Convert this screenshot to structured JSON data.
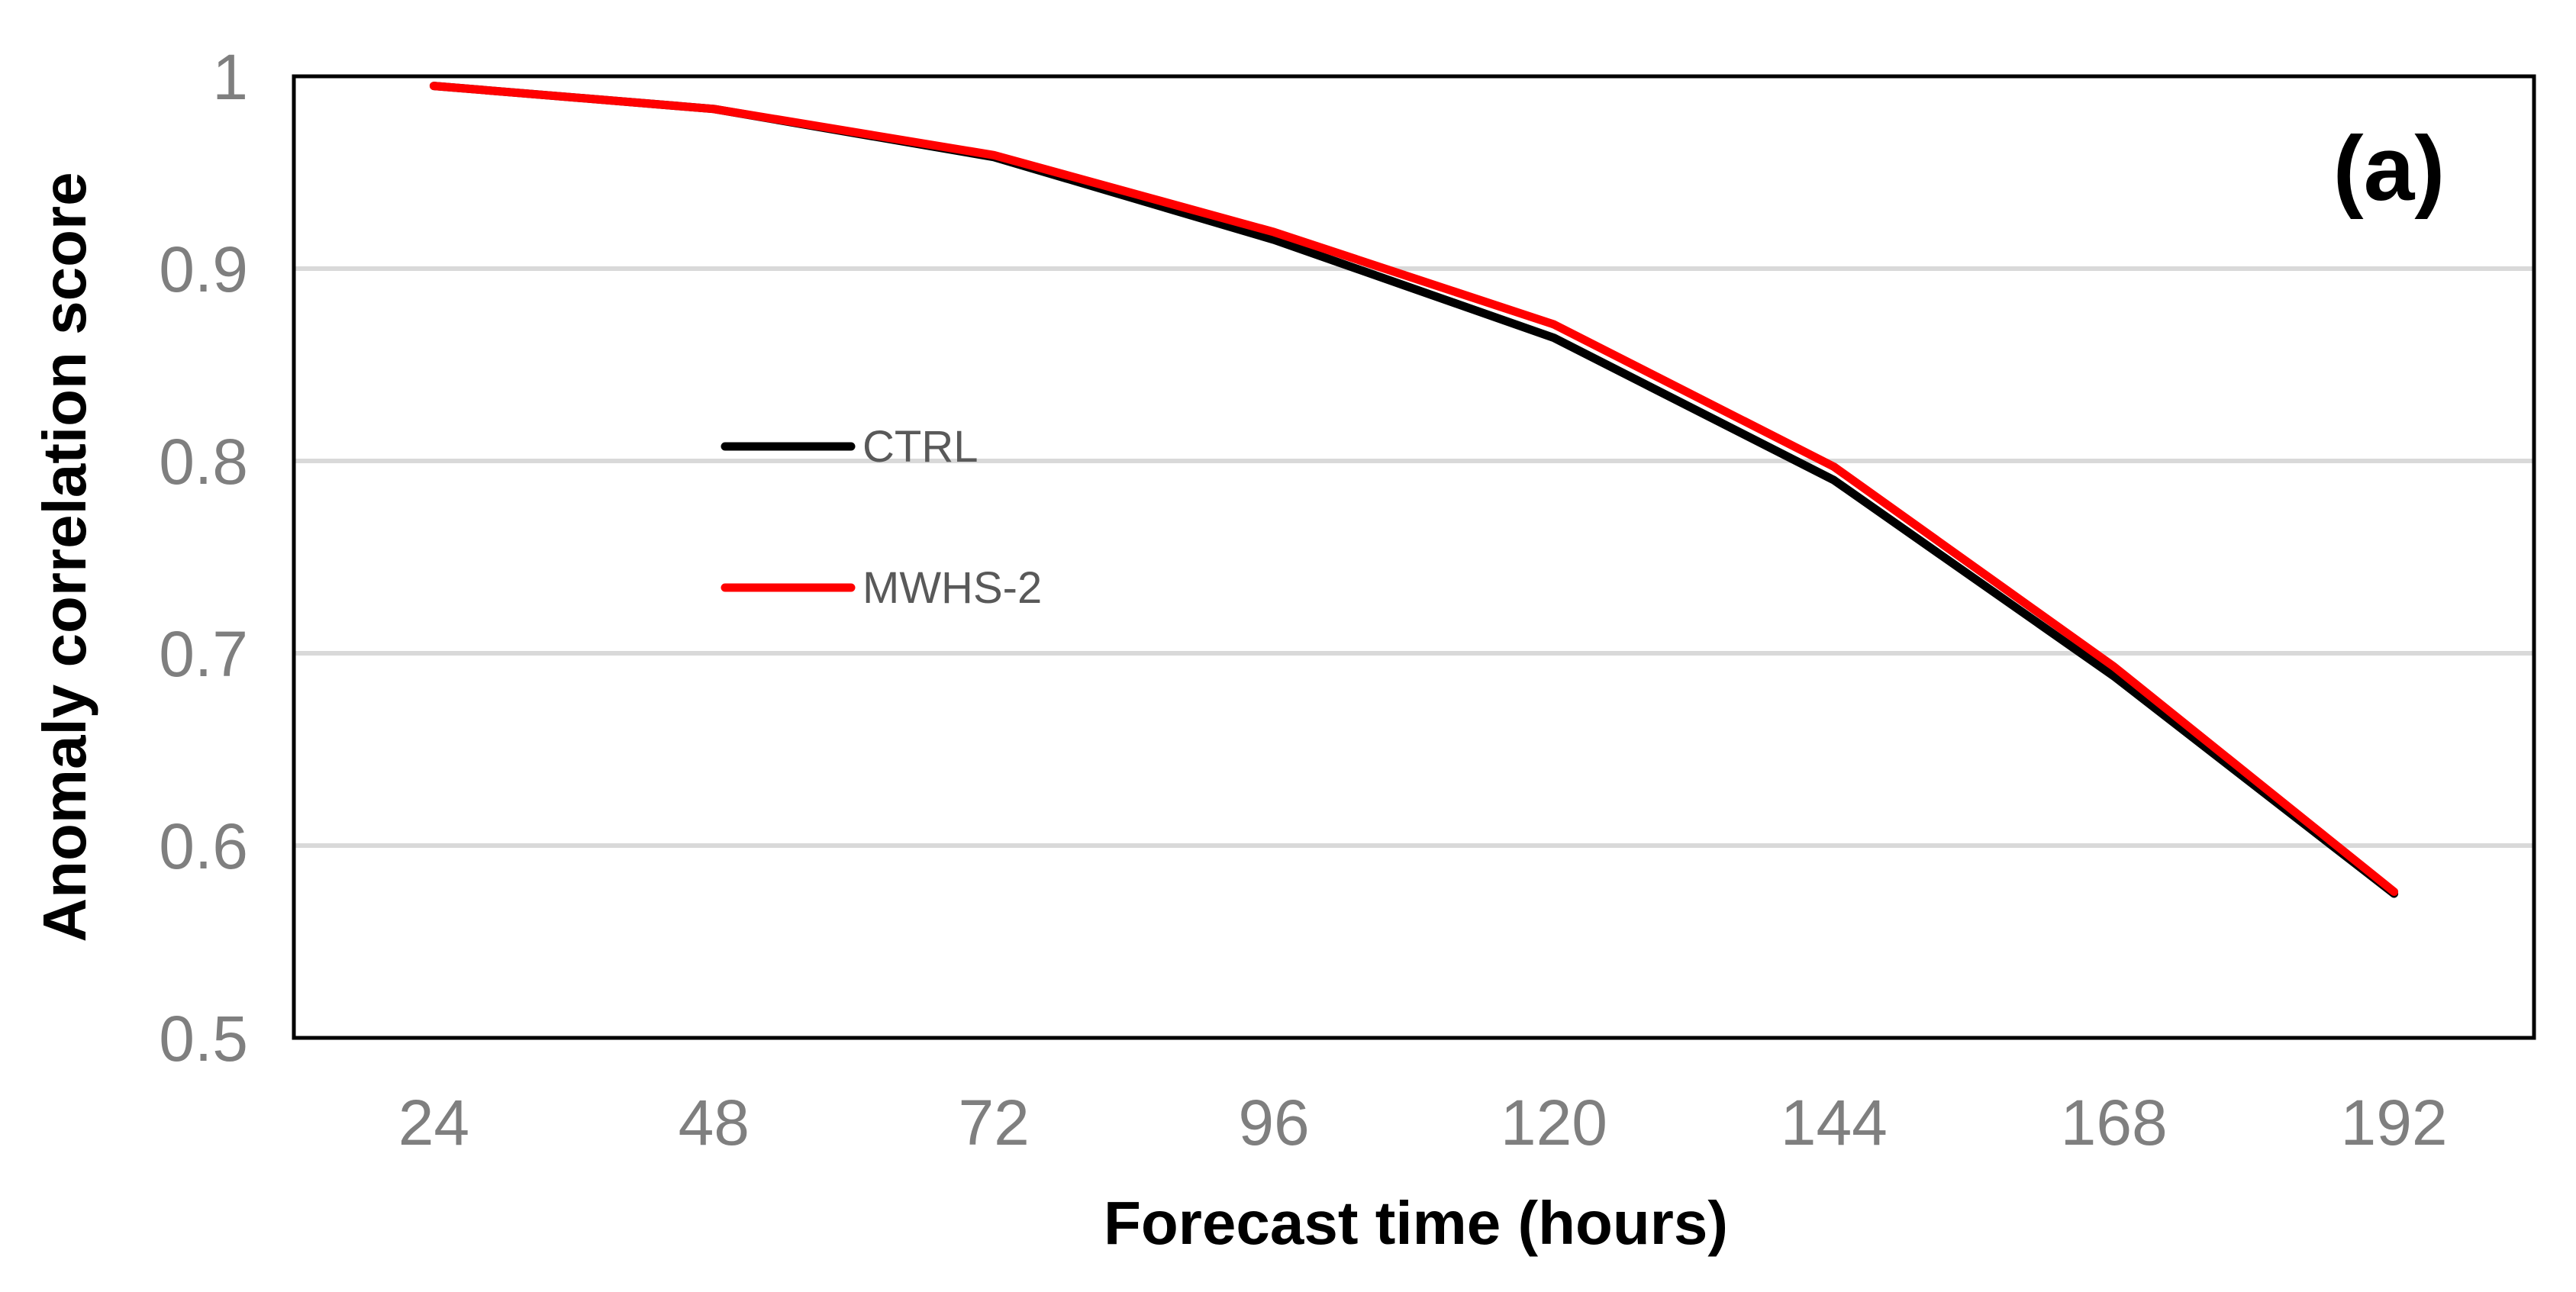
{
  "chart_data": {
    "type": "line",
    "panel_label": "(a)",
    "xlabel": "Forecast time (hours)",
    "ylabel": "Anomaly correlation score",
    "categories": [
      "24",
      "48",
      "72",
      "96",
      "120",
      "144",
      "168",
      "192"
    ],
    "ylim": [
      0.5,
      1
    ],
    "yticks": [
      0.5,
      0.6,
      0.7,
      0.8,
      0.9,
      1
    ],
    "ytick_labels": [
      "0.5",
      "0.6",
      "0.7",
      "0.8",
      "0.9",
      "1"
    ],
    "grid": "horizontal",
    "legend_position": "left-center",
    "series": [
      {
        "name": "CTRL",
        "color": "#000000",
        "values": [
          0.995,
          0.983,
          0.958,
          0.915,
          0.864,
          0.79,
          0.688,
          0.575
        ]
      },
      {
        "name": "MWHS-2",
        "color": "#ff0000",
        "values": [
          0.995,
          0.983,
          0.959,
          0.919,
          0.871,
          0.797,
          0.693,
          0.576
        ]
      }
    ]
  }
}
